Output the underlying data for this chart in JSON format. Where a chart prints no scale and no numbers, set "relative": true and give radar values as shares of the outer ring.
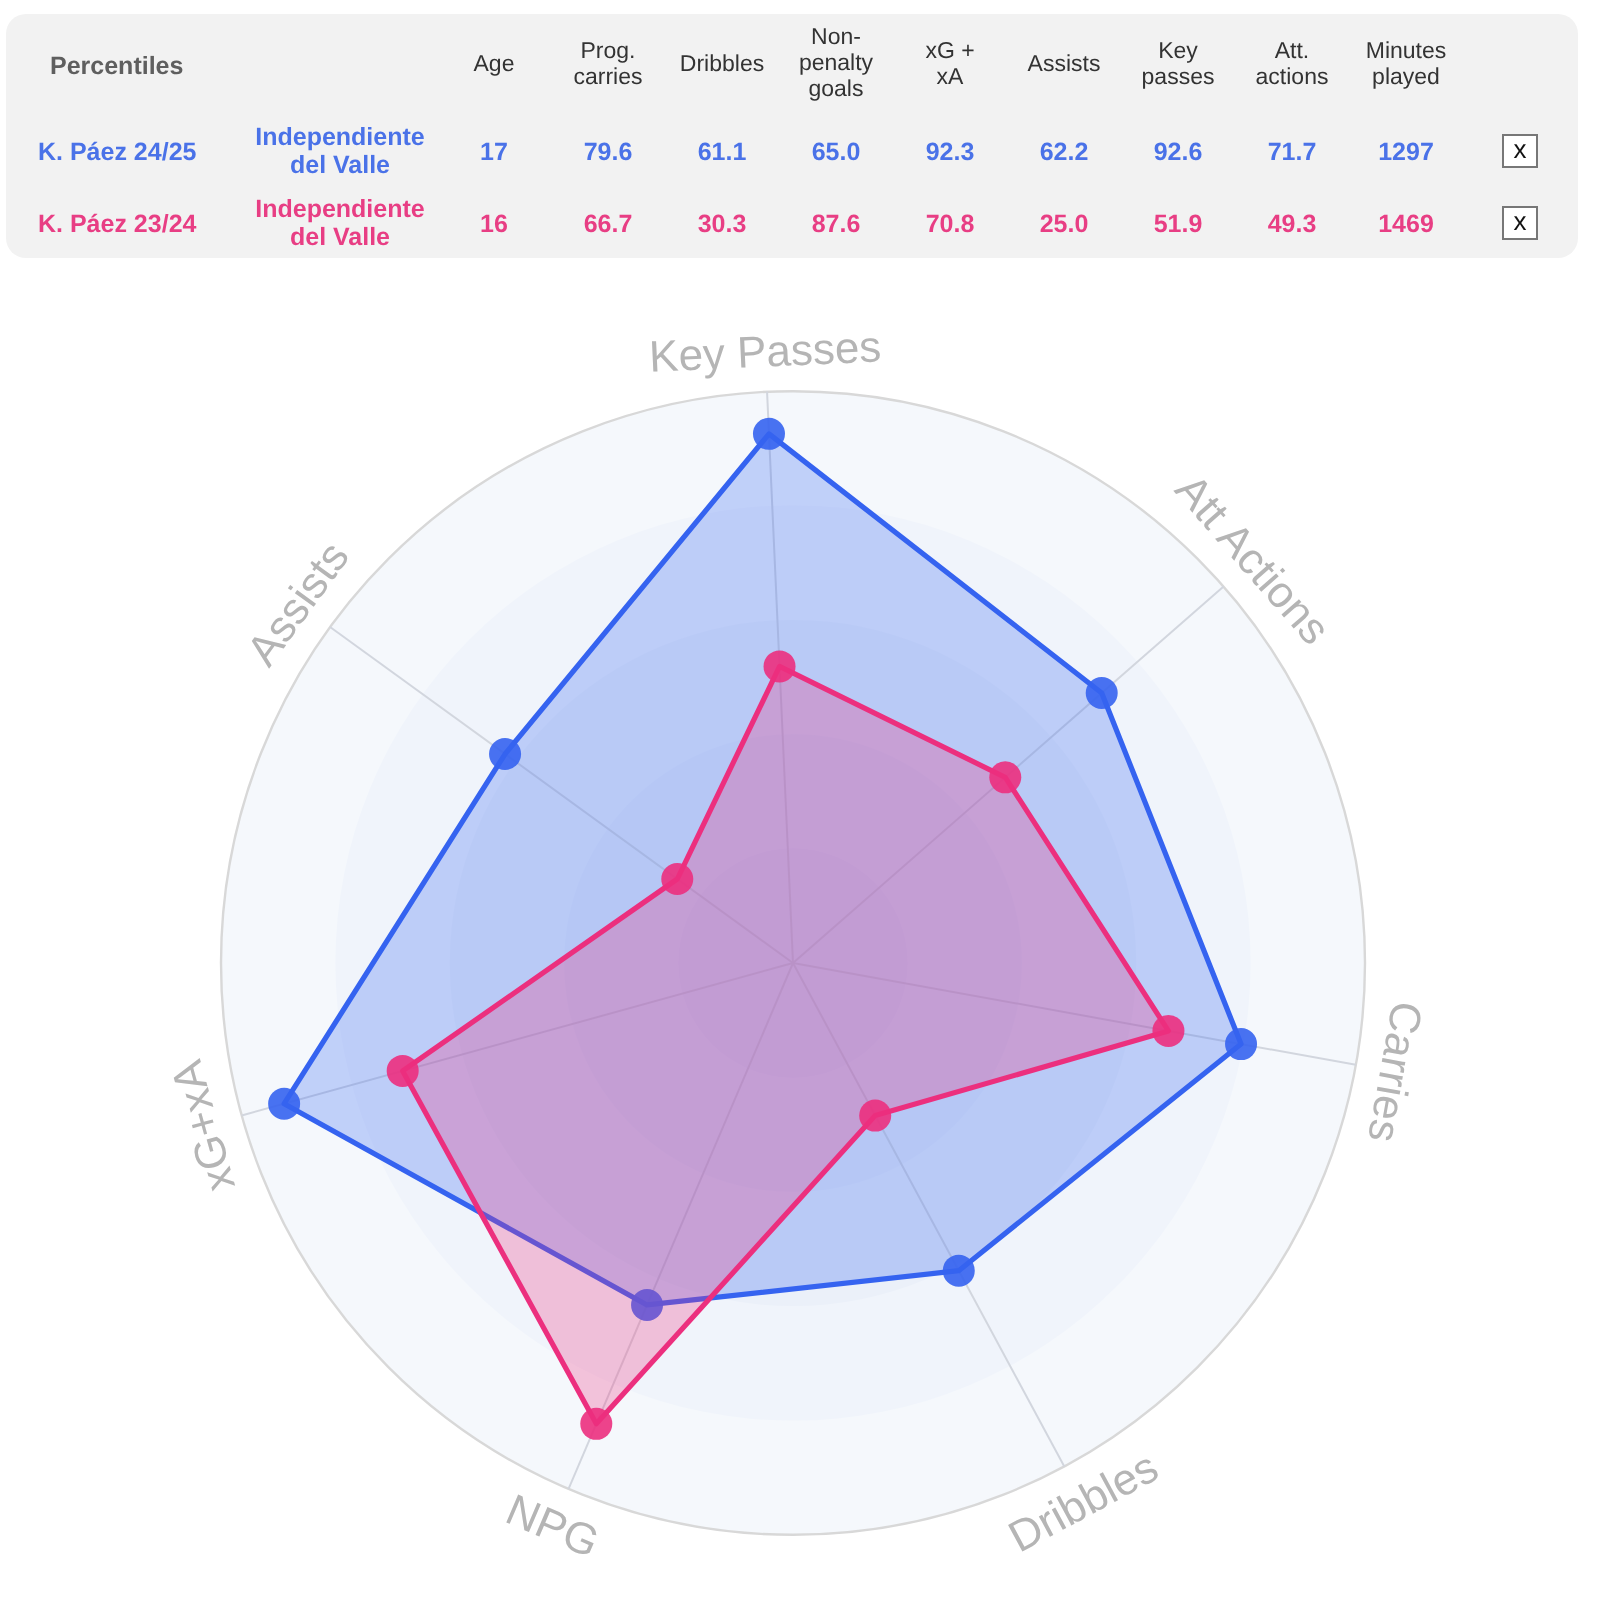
{
  "chart_data": [
    {
      "type": "other",
      "title": "Percentiles",
      "categories": [
        "Age",
        "Prog.\ncarries",
        "Dribbles",
        "Non-\npenalty\ngoals",
        "xG +\nxA",
        "Assists",
        "Key\npasses",
        "Att.\nactions",
        "Minutes\nplayed"
      ],
      "series": [
        {
          "name": "K. Páez 24/25",
          "color": "#4a72e8",
          "values": [
            17,
            79.6,
            61.1,
            65.0,
            92.3,
            62.2,
            92.6,
            71.7,
            1297
          ],
          "value_labels": [
            "17",
            "79.6",
            "61.1",
            "65.0",
            "92.3",
            "62.2",
            "92.6",
            "71.7",
            "1297"
          ]
        },
        {
          "name": "K. Páez 23/24",
          "color": "#e83e84",
          "values": [
            16,
            66.7,
            30.3,
            87.6,
            70.8,
            25.0,
            51.9,
            49.3,
            1469
          ],
          "value_labels": [
            "16",
            "66.7",
            "30.3",
            "87.6",
            "70.8",
            "25.0",
            "51.9",
            "49.3",
            "1469"
          ]
        }
      ],
      "annotations": [
        "Independiente\ndel Valle",
        "Independiente\ndel Valle",
        "x",
        "x"
      ]
    },
    {
      "type": "radar",
      "categories": [
        "Key Passes",
        "Att Actions",
        "Carries",
        "Dribbles",
        "NPG",
        "xG+xA",
        "Assists"
      ],
      "relative": true,
      "grid": true,
      "marker": "circle",
      "line_style": "solid",
      "series": [
        {
          "color": "#3563f0",
          "values": [
            0.926,
            0.717,
            0.796,
            0.611,
            0.65,
            0.923,
            0.622
          ]
        },
        {
          "color": "#ec2f7e",
          "values": [
            0.519,
            0.493,
            0.667,
            0.303,
            0.876,
            0.708,
            0.25
          ]
        }
      ]
    }
  ]
}
